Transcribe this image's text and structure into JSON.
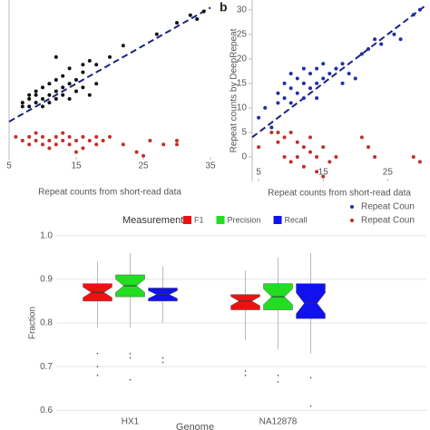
{
  "chart_data": [
    {
      "type": "scatter",
      "xlabel": "Repeat counts from short-read data",
      "xlim": [
        5,
        35
      ],
      "ylim": [
        -5,
        37
      ],
      "xticks": [
        5,
        15,
        25,
        35
      ],
      "reference_line_color": "#1a237e",
      "series": [
        {
          "color": "#111111",
          "points": [
            [
              7,
              9
            ],
            [
              7,
              10
            ],
            [
              8,
              9
            ],
            [
              8,
              11
            ],
            [
              8,
              12
            ],
            [
              9,
              10
            ],
            [
              9,
              12
            ],
            [
              9,
              13
            ],
            [
              10,
              9
            ],
            [
              10,
              11
            ],
            [
              10,
              14
            ],
            [
              11,
              10
            ],
            [
              11,
              12
            ],
            [
              11,
              15
            ],
            [
              12,
              11
            ],
            [
              12,
              13
            ],
            [
              12,
              16
            ],
            [
              13,
              12
            ],
            [
              13,
              14
            ],
            [
              13,
              17
            ],
            [
              14,
              11
            ],
            [
              14,
              15
            ],
            [
              14,
              19
            ],
            [
              15,
              13
            ],
            [
              15,
              16
            ],
            [
              16,
              14
            ],
            [
              16,
              18
            ],
            [
              17,
              12
            ],
            [
              17,
              21
            ],
            [
              18,
              15
            ],
            [
              18,
              20
            ],
            [
              20,
              22
            ],
            [
              22,
              25
            ],
            [
              27,
              28
            ],
            [
              30,
              31
            ],
            [
              32,
              33
            ],
            [
              33,
              32
            ],
            [
              34,
              34
            ],
            [
              12,
              22
            ],
            [
              16,
              20
            ]
          ]
        },
        {
          "color": "#c0302a",
          "points": [
            [
              6,
              1
            ],
            [
              7,
              0
            ],
            [
              8,
              1
            ],
            [
              8,
              -1
            ],
            [
              9,
              0
            ],
            [
              9,
              2
            ],
            [
              10,
              -1
            ],
            [
              10,
              1
            ],
            [
              11,
              0
            ],
            [
              11,
              -2
            ],
            [
              12,
              1
            ],
            [
              12,
              -1
            ],
            [
              13,
              0
            ],
            [
              13,
              2
            ],
            [
              14,
              -1
            ],
            [
              14,
              1
            ],
            [
              15,
              -3
            ],
            [
              15,
              0
            ],
            [
              16,
              1
            ],
            [
              16,
              -2
            ],
            [
              17,
              0
            ],
            [
              18,
              -1
            ],
            [
              18,
              1
            ],
            [
              19,
              0
            ],
            [
              20,
              1
            ],
            [
              22,
              -1
            ],
            [
              24,
              -3
            ],
            [
              25,
              -4
            ],
            [
              26,
              0
            ],
            [
              28,
              -1
            ],
            [
              30,
              0
            ],
            [
              30,
              -1
            ]
          ]
        }
      ]
    },
    {
      "type": "scatter",
      "panel_label": "b",
      "xlabel": "Repeat counts from short-read data",
      "ylabel": "Repeat counts by DeepRepeat",
      "xlim": [
        4,
        31
      ],
      "ylim": [
        -5,
        32
      ],
      "xticks": [
        5,
        15,
        25
      ],
      "yticks": [
        0,
        5,
        10,
        15,
        20,
        25,
        30
      ],
      "reference_line_color": "#1a237e",
      "series": [
        {
          "name": "Repeat Coun",
          "color": "#1f2fa8",
          "points": [
            [
              5,
              8
            ],
            [
              6,
              10
            ],
            [
              7,
              6
            ],
            [
              8,
              13
            ],
            [
              8,
              11
            ],
            [
              9,
              12
            ],
            [
              9,
              15
            ],
            [
              10,
              11
            ],
            [
              10,
              14
            ],
            [
              10,
              17
            ],
            [
              11,
              13
            ],
            [
              11,
              16
            ],
            [
              12,
              12
            ],
            [
              12,
              15
            ],
            [
              12,
              18
            ],
            [
              13,
              14
            ],
            [
              13,
              17
            ],
            [
              14,
              12
            ],
            [
              14,
              15
            ],
            [
              14,
              18
            ],
            [
              15,
              16
            ],
            [
              15,
              19
            ],
            [
              16,
              17
            ],
            [
              17,
              18
            ],
            [
              18,
              15
            ],
            [
              18,
              19
            ],
            [
              19,
              17
            ],
            [
              20,
              16
            ],
            [
              21,
              21
            ],
            [
              22,
              22
            ],
            [
              23,
              24
            ],
            [
              24,
              23
            ],
            [
              26,
              25
            ],
            [
              27,
              24
            ],
            [
              29,
              29
            ],
            [
              30,
              30
            ]
          ]
        },
        {
          "name": "Repeat Coun",
          "color": "#c0302a",
          "points": [
            [
              5,
              2
            ],
            [
              7,
              5
            ],
            [
              8,
              5
            ],
            [
              8,
              3
            ],
            [
              9,
              0
            ],
            [
              9,
              4
            ],
            [
              10,
              5
            ],
            [
              10,
              -1
            ],
            [
              11,
              3
            ],
            [
              11,
              0
            ],
            [
              12,
              2
            ],
            [
              12,
              -2
            ],
            [
              13,
              4
            ],
            [
              13,
              1
            ],
            [
              14,
              0
            ],
            [
              14,
              -3
            ],
            [
              15,
              -4
            ],
            [
              15,
              2
            ],
            [
              16,
              -1
            ],
            [
              17,
              0
            ],
            [
              21,
              4
            ],
            [
              22,
              2
            ],
            [
              23,
              0
            ],
            [
              29,
              0
            ],
            [
              30,
              -1
            ]
          ]
        }
      ]
    },
    {
      "type": "box",
      "legend_title": "Measurement",
      "xlabel": "Genome",
      "ylabel": "Fraction",
      "categories": [
        "HX1",
        "NA12878"
      ],
      "ylim": [
        0.58,
        1.02
      ],
      "yticks": [
        0.6,
        0.7,
        0.8,
        0.9,
        {
          "value": 1,
          "label": "1.0"
        }
      ],
      "series": [
        {
          "name": "F1",
          "color": "#ee1111",
          "boxes": [
            {
              "min": 0.79,
              "q1": 0.85,
              "median": 0.87,
              "q3": 0.89,
              "max": 0.94,
              "outliers": [
                0.73,
                0.7,
                0.68
              ]
            },
            {
              "min": 0.76,
              "q1": 0.83,
              "median": 0.85,
              "q3": 0.865,
              "max": 0.92,
              "outliers": [
                0.69,
                0.68
              ]
            }
          ]
        },
        {
          "name": "Precision",
          "color": "#22dd22",
          "boxes": [
            {
              "min": 0.79,
              "q1": 0.86,
              "median": 0.885,
              "q3": 0.91,
              "max": 0.96,
              "outliers": [
                0.73,
                0.72,
                0.67
              ]
            },
            {
              "min": 0.74,
              "q1": 0.83,
              "median": 0.86,
              "q3": 0.89,
              "max": 0.95,
              "outliers": [
                0.68,
                0.665
              ]
            }
          ]
        },
        {
          "name": "Recall",
          "color": "#1111ee",
          "boxes": [
            {
              "min": 0.8,
              "q1": 0.85,
              "median": 0.865,
              "q3": 0.88,
              "max": 0.93,
              "outliers": [
                0.71,
                0.72
              ]
            },
            {
              "min": 0.73,
              "q1": 0.81,
              "median": 0.845,
              "q3": 0.89,
              "max": 0.96,
              "outliers": [
                0.675,
                0.61
              ]
            }
          ]
        }
      ]
    }
  ]
}
